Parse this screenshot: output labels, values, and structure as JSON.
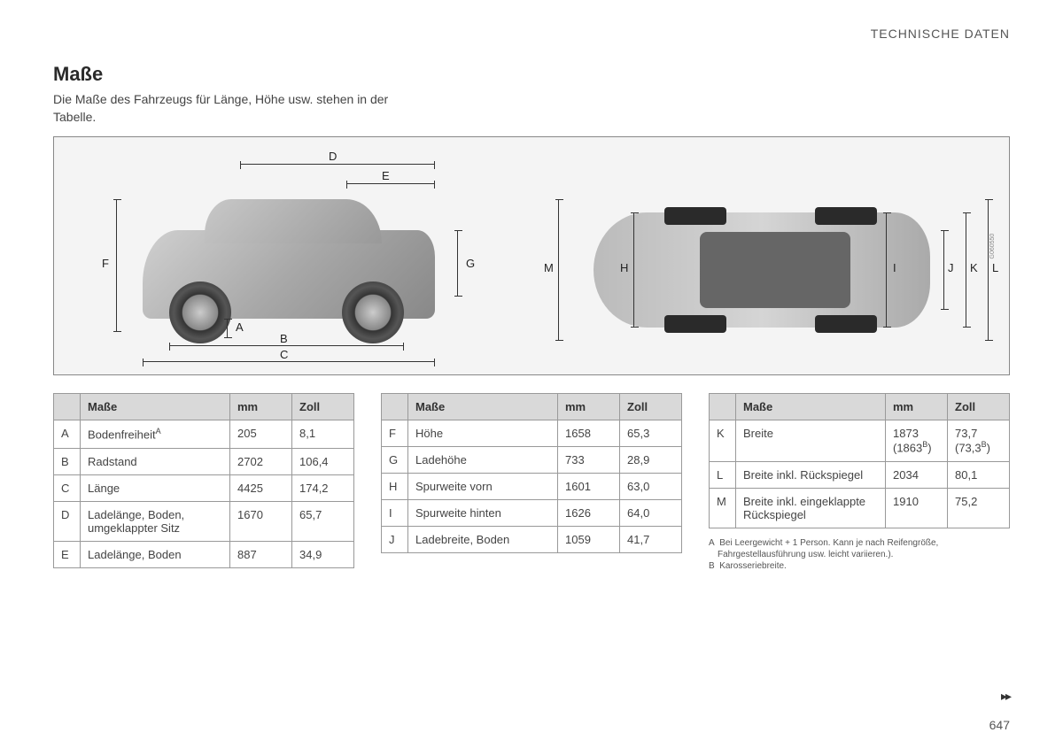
{
  "header": {
    "section": "TECHNISCHE DATEN"
  },
  "title": "Maße",
  "subtitle": "Die Maße des Fahrzeugs für Länge, Höhe usw. stehen in der Tabelle.",
  "page_number": "647",
  "diagram": {
    "ref_code": "G060550",
    "side_labels": [
      "A",
      "B",
      "C",
      "D",
      "E",
      "F",
      "G"
    ],
    "top_labels": [
      "H",
      "I",
      "J",
      "K",
      "L",
      "M"
    ]
  },
  "table_headers": {
    "col1": "",
    "col2": "Maße",
    "col3": "mm",
    "col4": "Zoll"
  },
  "tables": {
    "left": [
      {
        "k": "A",
        "label": "Bodenfreiheit",
        "sup": "A",
        "mm": "205",
        "zoll": "8,1"
      },
      {
        "k": "B",
        "label": "Radstand",
        "mm": "2702",
        "zoll": "106,4"
      },
      {
        "k": "C",
        "label": "Länge",
        "mm": "4425",
        "zoll": "174,2"
      },
      {
        "k": "D",
        "label": "Ladelänge, Boden, umgeklappter Sitz",
        "mm": "1670",
        "zoll": "65,7"
      },
      {
        "k": "E",
        "label": "Ladelänge, Boden",
        "mm": "887",
        "zoll": "34,9"
      }
    ],
    "mid": [
      {
        "k": "F",
        "label": "Höhe",
        "mm": "1658",
        "zoll": "65,3"
      },
      {
        "k": "G",
        "label": "Ladehöhe",
        "mm": "733",
        "zoll": "28,9"
      },
      {
        "k": "H",
        "label": "Spurweite vorn",
        "mm": "1601",
        "zoll": "63,0"
      },
      {
        "k": "I",
        "label": "Spurweite hinten",
        "mm": "1626",
        "zoll": "64,0"
      },
      {
        "k": "J",
        "label": "Ladebreite, Boden",
        "mm": "1059",
        "zoll": "41,7"
      }
    ],
    "right": [
      {
        "k": "K",
        "label": "Breite",
        "mm": "1873 (1863",
        "mm_sup": "B",
        "mm_tail": ")",
        "zoll": "73,7 (73,3",
        "zoll_sup": "B",
        "zoll_tail": ")"
      },
      {
        "k": "L",
        "label": "Breite inkl. Rückspiegel",
        "mm": "2034",
        "zoll": "80,1"
      },
      {
        "k": "M",
        "label": "Breite inkl. eingeklappte Rückspiegel",
        "mm": "1910",
        "zoll": "75,2"
      }
    ]
  },
  "footnotes": {
    "A": "Bei Leergewicht + 1 Person. Kann je nach Reifengröße, Fahrgestellausführung usw. leicht variieren.).",
    "B": "Karosseriebreite."
  },
  "colors": {
    "page_bg": "#ffffff",
    "text": "#3a3a3a",
    "header_bg": "#d9d9d9",
    "border": "#999999",
    "diagram_bg": "#f4f4f4"
  }
}
